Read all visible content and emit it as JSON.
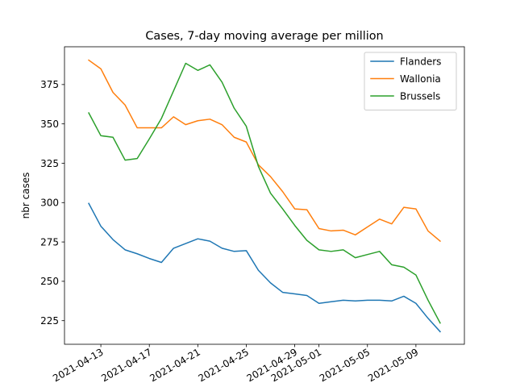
{
  "chart_data": {
    "type": "line",
    "title": "Cases, 7-day moving average per million",
    "xlabel": "",
    "ylabel": "nbr cases",
    "xlim": [
      "2021-04-10",
      "2021-05-13"
    ],
    "ylim": [
      210,
      399
    ],
    "grid": false,
    "legend_position": "top-right",
    "x_ticks": [
      "2021-04-13",
      "2021-04-17",
      "2021-04-21",
      "2021-04-25",
      "2021-04-29",
      "2021-05-01",
      "2021-05-05",
      "2021-05-09"
    ],
    "y_ticks": [
      225,
      250,
      275,
      300,
      325,
      350,
      375
    ],
    "x": [
      "2021-04-12",
      "2021-04-13",
      "2021-04-14",
      "2021-04-15",
      "2021-04-16",
      "2021-04-17",
      "2021-04-18",
      "2021-04-19",
      "2021-04-20",
      "2021-04-21",
      "2021-04-22",
      "2021-04-23",
      "2021-04-24",
      "2021-04-25",
      "2021-04-26",
      "2021-04-27",
      "2021-04-28",
      "2021-04-29",
      "2021-04-30",
      "2021-05-01",
      "2021-05-02",
      "2021-05-03",
      "2021-05-04",
      "2021-05-05",
      "2021-05-06",
      "2021-05-07",
      "2021-05-08",
      "2021-05-09",
      "2021-05-10",
      "2021-05-11"
    ],
    "series": [
      {
        "name": "Flanders",
        "color": "#1f77b4",
        "values": [
          299.5,
          285,
          276.5,
          270,
          267.5,
          264.5,
          262,
          271,
          274,
          277,
          275.5,
          271,
          269,
          269.5,
          257,
          249,
          243,
          242,
          241,
          236,
          237,
          238,
          237.5,
          238,
          238,
          237.5,
          240.5,
          236,
          226.5,
          218
        ]
      },
      {
        "name": "Wallonia",
        "color": "#ff7f0e",
        "values": [
          390.5,
          385,
          370,
          362,
          347.5,
          347.5,
          347.5,
          354.5,
          349.5,
          352,
          353,
          349.5,
          341.5,
          338.5,
          324,
          316.5,
          307,
          296,
          295.5,
          283.5,
          282,
          282.5,
          279.5,
          284.5,
          289.5,
          286.5,
          297,
          296,
          282,
          275.5
        ]
      },
      {
        "name": "Brussels",
        "color": "#2ca02c",
        "values": [
          357,
          342.5,
          341.5,
          327,
          328,
          340.5,
          353.5,
          371,
          388.5,
          384,
          387.5,
          376.5,
          360,
          348.5,
          323,
          306,
          296,
          285.5,
          276,
          270,
          269,
          270,
          265,
          267,
          269,
          260.5,
          259,
          254,
          238,
          223.5
        ]
      }
    ]
  }
}
